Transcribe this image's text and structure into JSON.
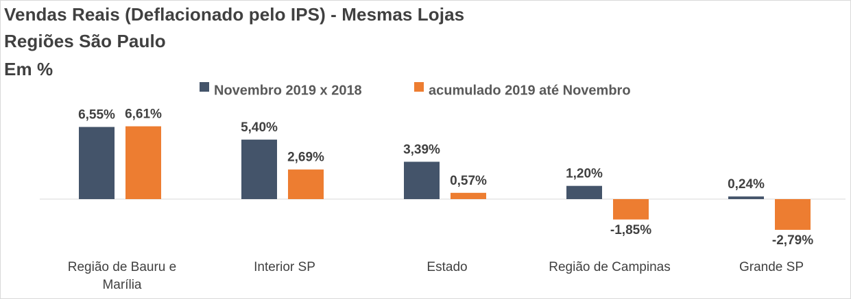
{
  "chart_data": {
    "type": "bar",
    "title": "Vendas Reais (Deflacionado pelo IPS) - Mesmas Lojas",
    "subtitle": "Regiões São Paulo",
    "unit_label": "Em %",
    "categories": [
      [
        "Região de Bauru e",
        "Marília"
      ],
      [
        "Interior SP"
      ],
      [
        "Estado"
      ],
      [
        "Região de Campinas"
      ],
      [
        "Grande SP"
      ]
    ],
    "series": [
      {
        "name": "Novembro 2019 x 2018",
        "color": "#44546A",
        "values": [
          6.55,
          5.4,
          3.39,
          1.2,
          0.24
        ],
        "labels": [
          "6,55%",
          "5,40%",
          "3,39%",
          "1,20%",
          "0,24%"
        ]
      },
      {
        "name": "acumulado 2019 até Novembro",
        "color": "#ED7D31",
        "values": [
          6.61,
          2.69,
          0.57,
          -1.85,
          -2.79
        ],
        "labels": [
          "6,61%",
          "2,69%",
          "0,57%",
          "-1,85%",
          "-2,79%"
        ]
      }
    ],
    "legend_position": "top",
    "grid": false,
    "axis_color": "#d9d9d9"
  }
}
